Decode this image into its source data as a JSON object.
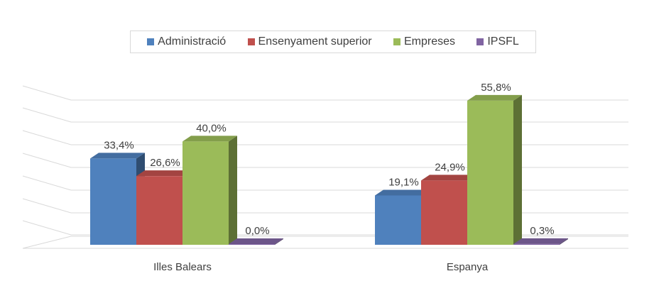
{
  "chart_data": {
    "type": "bar",
    "categories": [
      "Illes Balears",
      "Espanya"
    ],
    "series": [
      {
        "name": "Administració",
        "values": [
          33.4,
          19.1
        ],
        "labels": [
          "33,4%",
          "19,1%"
        ],
        "color": "#4f81bd"
      },
      {
        "name": "Ensenyament superior",
        "values": [
          26.6,
          24.9
        ],
        "labels": [
          "26,6%",
          "24,9%"
        ],
        "color": "#c0504d"
      },
      {
        "name": "Empreses",
        "values": [
          40.0,
          55.8
        ],
        "labels": [
          "40,0%",
          "55,8%"
        ],
        "color": "#9bbb59"
      },
      {
        "name": "IPSFL",
        "values": [
          0.0,
          0.3
        ],
        "labels": [
          "0,0%",
          "0,3%"
        ],
        "color": "#8064a2"
      }
    ],
    "legend": "top",
    "grid": true,
    "style": "3d-clustered"
  }
}
